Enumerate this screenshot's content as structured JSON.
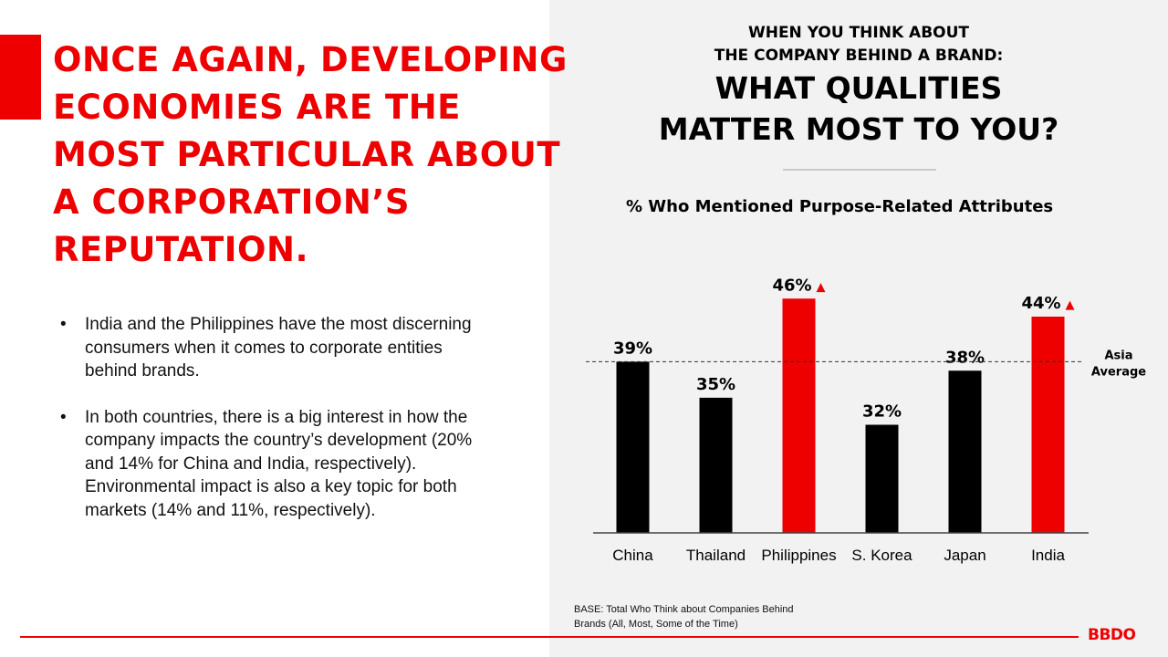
{
  "headline": {
    "lines": [
      "ONCE AGAIN, DEVELOPING",
      "ECONOMIES ARE THE",
      "MOST PARTICULAR ABOUT",
      "A CORPORATION’S",
      "REPUTATION."
    ]
  },
  "bullets": [
    {
      "marker": "•",
      "lines": [
        "India and the Philippines have the most discerning",
        "consumers when it comes to corporate entities",
        "behind brands."
      ]
    },
    {
      "marker": "•",
      "lines": [
        "In both countries, there is a big interest in how the",
        "company impacts the country’s development (20%",
        "and 14% for China and India, respectively).",
        "Environmental impact is also a key topic for both",
        "markets (14% and 11%, respectively)."
      ]
    }
  ],
  "question": {
    "small_lines": [
      "WHEN YOU THINK ABOUT",
      "THE COMPANY BEHIND A BRAND:"
    ],
    "big_lines": [
      "WHAT QUALITIES",
      "MATTER MOST TO YOU?"
    ]
  },
  "chart_data": {
    "type": "bar",
    "title": "% Who Mentioned Purpose-Related Attributes",
    "categories": [
      "China",
      "Thailand",
      "Philippines",
      "S. Korea",
      "Japan",
      "India"
    ],
    "values": [
      39,
      35,
      46,
      32,
      38,
      44
    ],
    "value_labels": [
      "39%",
      "35%",
      "46%",
      "32%",
      "38%",
      "44%"
    ],
    "highlight": [
      false,
      false,
      true,
      false,
      false,
      true
    ],
    "highlight_marker": "▲",
    "reference_line": {
      "value": 39,
      "label_lines": [
        "Asia",
        "Average"
      ],
      "style": "dashed"
    },
    "colors": {
      "default": "#000000",
      "highlight": "#ee0000"
    },
    "ylim": [
      20,
      48
    ],
    "grid": false
  },
  "base_note": {
    "lines": [
      "BASE: Total Who Think about Companies Behind",
      "Brands (All, Most, Some of the Time)"
    ]
  },
  "footer": {
    "logo": "BBDO"
  },
  "colors": {
    "accent": "#ee0000",
    "right_panel_bg": "#f2f2f2"
  }
}
